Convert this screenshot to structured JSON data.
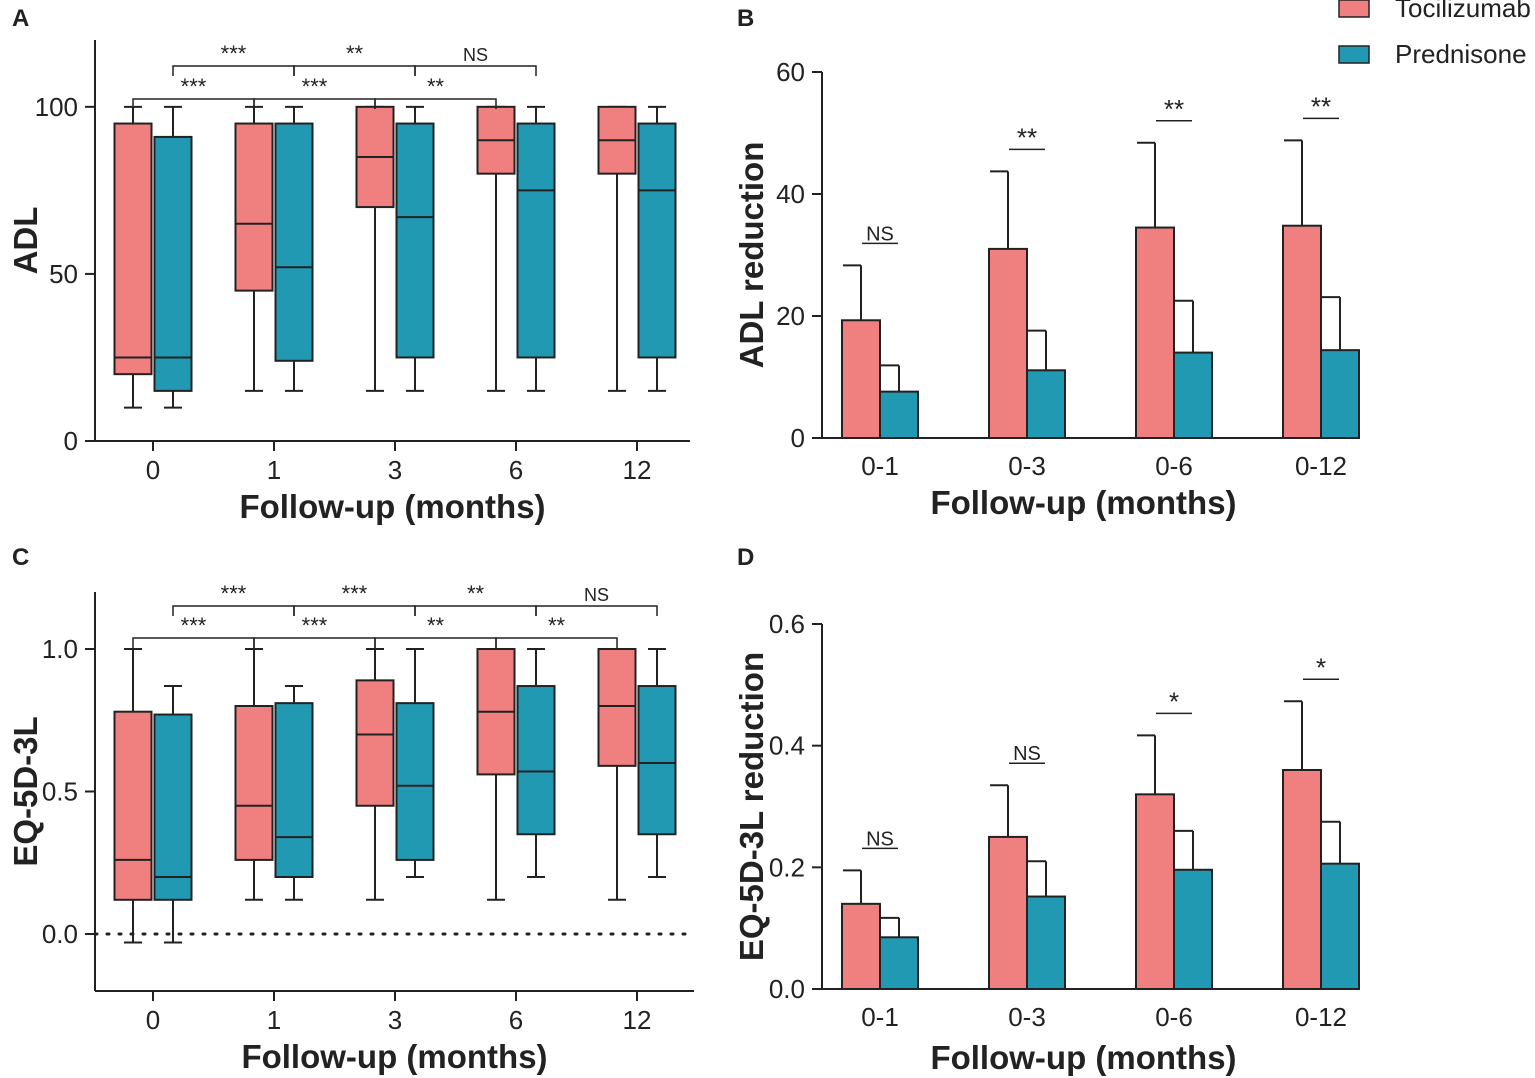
{
  "colors": {
    "tocilizumab": "#F08080",
    "prednisone": "#2299B3",
    "stroke": "#222222"
  },
  "legend": {
    "items": [
      {
        "label": "Tocilizumab",
        "color": "#F08080"
      },
      {
        "label": "Prednisone",
        "color": "#2299B3"
      }
    ]
  },
  "chart_data": [
    {
      "id": "A",
      "panel_label": "A",
      "type": "box",
      "xlabel": "Follow-up (months)",
      "ylabel": "ADL",
      "categories": [
        "0",
        "1",
        "3",
        "6",
        "12"
      ],
      "ylim": [
        0,
        120
      ],
      "yticks": [
        0,
        50,
        100
      ],
      "series": [
        {
          "name": "Tocilizumab",
          "boxes": [
            {
              "min": 10,
              "q1": 20,
              "median": 25,
              "q3": 95,
              "max": 100
            },
            {
              "min": 15,
              "q1": 45,
              "median": 65,
              "q3": 95,
              "max": 100
            },
            {
              "min": 15,
              "q1": 70,
              "median": 85,
              "q3": 100,
              "max": 100
            },
            {
              "min": 15,
              "q1": 80,
              "median": 90,
              "q3": 100,
              "max": 100
            },
            {
              "min": 15,
              "q1": 80,
              "median": 90,
              "q3": 100,
              "max": 100
            }
          ]
        },
        {
          "name": "Prednisone",
          "boxes": [
            {
              "min": 10,
              "q1": 15,
              "median": 25,
              "q3": 91,
              "max": 100
            },
            {
              "min": 15,
              "q1": 24,
              "median": 52,
              "q3": 95,
              "max": 100
            },
            {
              "min": 15,
              "q1": 25,
              "median": 67,
              "q3": 95,
              "max": 100
            },
            {
              "min": 15,
              "q1": 25,
              "median": 75,
              "q3": 95,
              "max": 100
            },
            {
              "min": 15,
              "q1": 25,
              "median": 75,
              "q3": 95,
              "max": 100
            }
          ]
        }
      ],
      "significance": [
        {
          "series": "Tocilizumab",
          "from": 0,
          "to": 1,
          "label": "***",
          "level": 1
        },
        {
          "series": "Tocilizumab",
          "from": 1,
          "to": 2,
          "label": "***",
          "level": 1
        },
        {
          "series": "Tocilizumab",
          "from": 2,
          "to": 3,
          "label": "**",
          "level": 1
        },
        {
          "series": "Prednisone",
          "from": 0,
          "to": 1,
          "label": "***",
          "level": 2
        },
        {
          "series": "Prednisone",
          "from": 1,
          "to": 2,
          "label": "**",
          "level": 2
        },
        {
          "series": "Prednisone",
          "from": 2,
          "to": 3,
          "label": "NS",
          "level": 2
        }
      ]
    },
    {
      "id": "B",
      "panel_label": "B",
      "type": "bar",
      "xlabel": "Follow-up (months)",
      "ylabel": "ADL reduction",
      "categories": [
        "0-1",
        "0-3",
        "0-6",
        "0-12"
      ],
      "ylim": [
        0,
        60
      ],
      "yticks": [
        0,
        20,
        40,
        60
      ],
      "series": [
        {
          "name": "Tocilizumab",
          "values": [
            19.3,
            31.0,
            34.5,
            34.8
          ],
          "errors": [
            9.0,
            12.7,
            13.9,
            14.0
          ]
        },
        {
          "name": "Prednisone",
          "values": [
            7.6,
            11.1,
            14.0,
            14.4
          ],
          "errors": [
            4.3,
            6.5,
            8.5,
            8.7
          ]
        }
      ],
      "significance": [
        "NS",
        "**",
        "**",
        "**"
      ]
    },
    {
      "id": "C",
      "panel_label": "C",
      "type": "box",
      "xlabel": "Follow-up (months)",
      "ylabel": "EQ-5D-3L",
      "categories": [
        "0",
        "1",
        "3",
        "6",
        "12"
      ],
      "ylim": [
        -0.2,
        1.2
      ],
      "yticks": [
        0.0,
        0.5,
        1.0
      ],
      "ytick_labels": [
        "0.0",
        "0.5",
        "1.0"
      ],
      "reference_line": 0,
      "series": [
        {
          "name": "Tocilizumab",
          "boxes": [
            {
              "min": -0.03,
              "q1": 0.12,
              "median": 0.26,
              "q3": 0.78,
              "max": 1.0
            },
            {
              "min": 0.12,
              "q1": 0.26,
              "median": 0.45,
              "q3": 0.8,
              "max": 1.0
            },
            {
              "min": 0.12,
              "q1": 0.45,
              "median": 0.7,
              "q3": 0.89,
              "max": 1.0
            },
            {
              "min": 0.12,
              "q1": 0.56,
              "median": 0.78,
              "q3": 1.0,
              "max": 1.0
            },
            {
              "min": 0.12,
              "q1": 0.59,
              "median": 0.8,
              "q3": 1.0,
              "max": 1.0
            }
          ]
        },
        {
          "name": "Prednisone",
          "boxes": [
            {
              "min": -0.03,
              "q1": 0.12,
              "median": 0.2,
              "q3": 0.77,
              "max": 0.87
            },
            {
              "min": 0.12,
              "q1": 0.2,
              "median": 0.34,
              "q3": 0.81,
              "max": 0.87
            },
            {
              "min": 0.2,
              "q1": 0.26,
              "median": 0.52,
              "q3": 0.81,
              "max": 1.0
            },
            {
              "min": 0.2,
              "q1": 0.35,
              "median": 0.57,
              "q3": 0.87,
              "max": 1.0
            },
            {
              "min": 0.2,
              "q1": 0.35,
              "median": 0.6,
              "q3": 0.87,
              "max": 1.0
            }
          ]
        }
      ],
      "significance": [
        {
          "series": "Tocilizumab",
          "from": 0,
          "to": 1,
          "label": "***",
          "level": 1
        },
        {
          "series": "Tocilizumab",
          "from": 1,
          "to": 2,
          "label": "***",
          "level": 1
        },
        {
          "series": "Tocilizumab",
          "from": 2,
          "to": 3,
          "label": "**",
          "level": 1
        },
        {
          "series": "Tocilizumab",
          "from": 3,
          "to": 4,
          "label": "**",
          "level": 1
        },
        {
          "series": "Prednisone",
          "from": 0,
          "to": 1,
          "label": "***",
          "level": 2
        },
        {
          "series": "Prednisone",
          "from": 1,
          "to": 2,
          "label": "***",
          "level": 2
        },
        {
          "series": "Prednisone",
          "from": 2,
          "to": 3,
          "label": "**",
          "level": 2
        },
        {
          "series": "Prednisone",
          "from": 3,
          "to": 4,
          "label": "NS",
          "level": 2
        }
      ]
    },
    {
      "id": "D",
      "panel_label": "D",
      "type": "bar",
      "xlabel": "Follow-up (months)",
      "ylabel": "EQ-5D-3L reduction",
      "categories": [
        "0-1",
        "0-3",
        "0-6",
        "0-12"
      ],
      "ylim": [
        0,
        0.6
      ],
      "yticks": [
        0,
        0.2,
        0.4,
        0.6
      ],
      "ytick_labels": [
        "0.0",
        "0.2",
        "0.4",
        "0.6"
      ],
      "series": [
        {
          "name": "Tocilizumab",
          "values": [
            0.14,
            0.25,
            0.32,
            0.36
          ],
          "errors": [
            0.055,
            0.085,
            0.097,
            0.113
          ]
        },
        {
          "name": "Prednisone",
          "values": [
            0.085,
            0.152,
            0.196,
            0.206
          ],
          "errors": [
            0.032,
            0.058,
            0.064,
            0.069
          ]
        }
      ],
      "significance": [
        "NS",
        "NS",
        "*",
        "*"
      ]
    }
  ]
}
